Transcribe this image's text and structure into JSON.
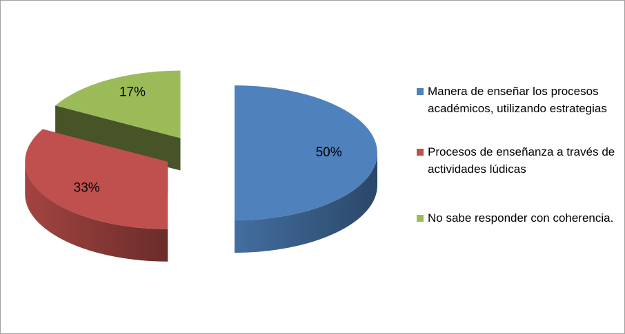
{
  "chart_data": {
    "type": "pie",
    "categories": [
      "Manera de enseñar los procesos académicos, utilizando estrategias",
      "Procesos de enseñanza a través de actividades lúdicas",
      "No sabe responder con coherencia."
    ],
    "values": [
      50,
      33,
      17
    ],
    "value_labels": [
      "50%",
      "33%",
      "17%"
    ],
    "colors": [
      "#4f81bd",
      "#c0504d",
      "#9bbb59"
    ],
    "legend": "right"
  }
}
